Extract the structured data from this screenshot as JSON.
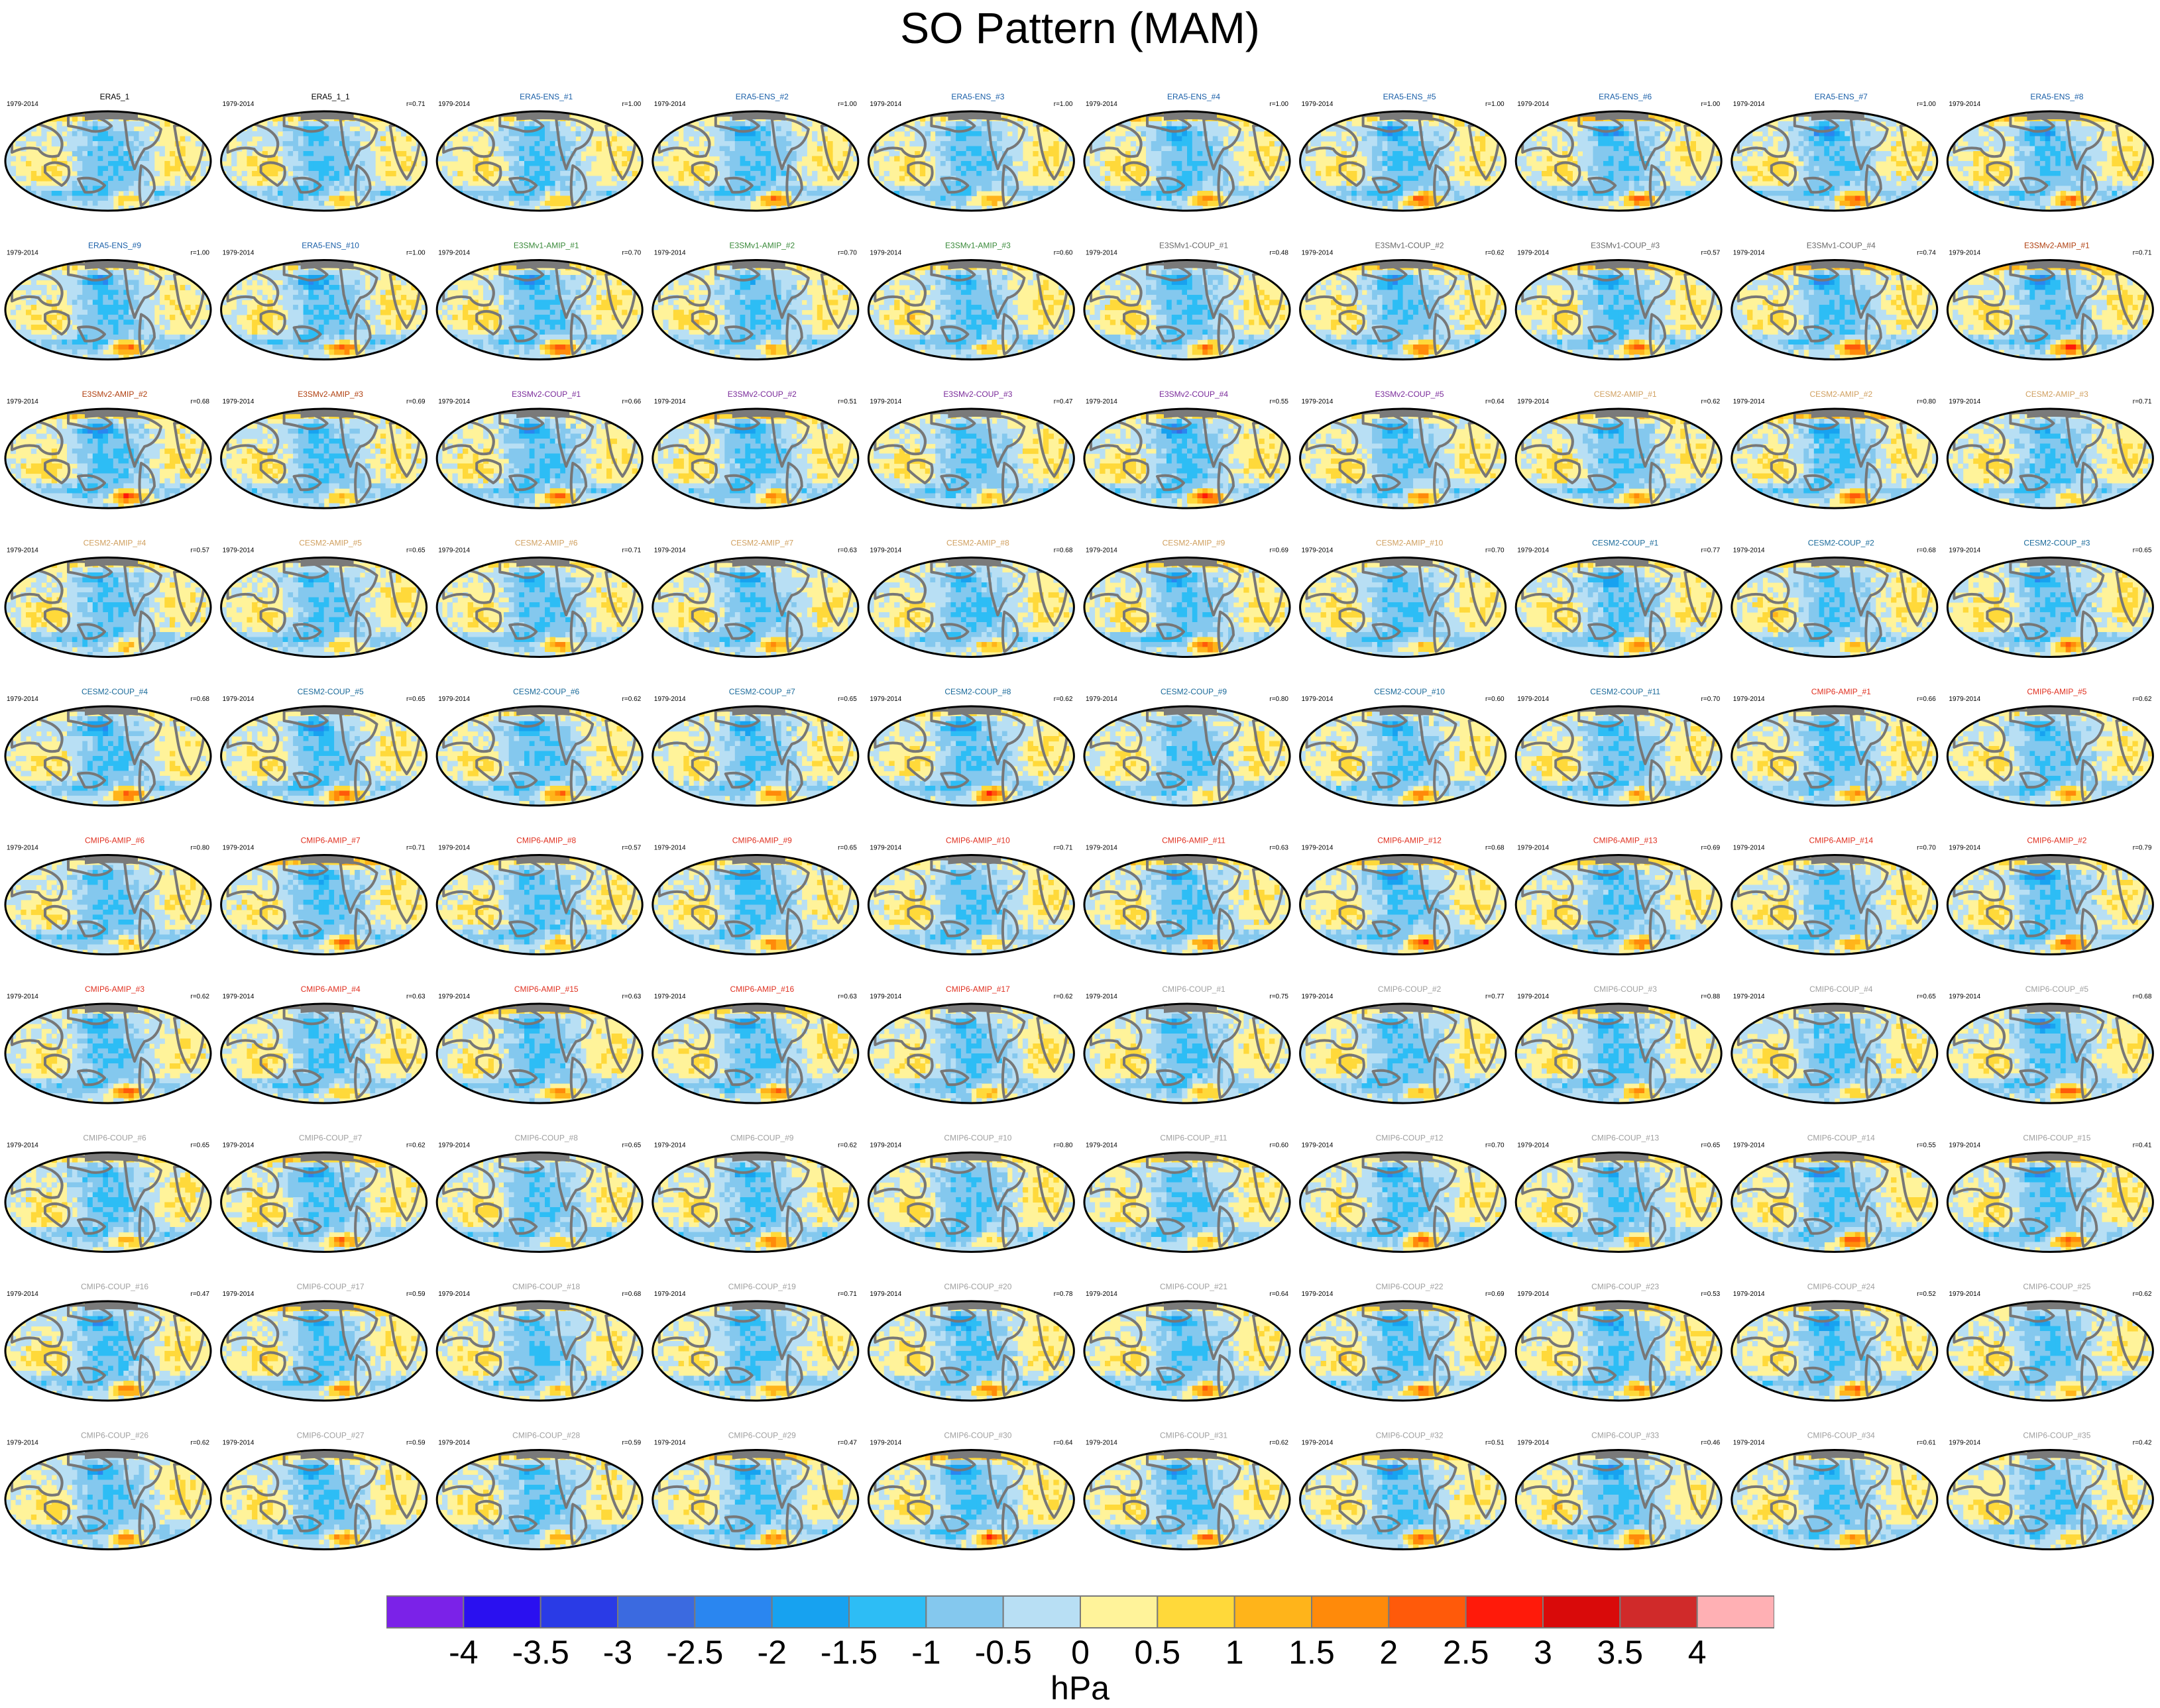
{
  "chart_data": {
    "type": "heatmap",
    "title": "SO Pattern (MAM)",
    "description_type": "grid of global sea-level-pressure regression maps",
    "period": "1979-2014",
    "colorbar": {
      "unit": "hPa",
      "ticks": [
        "-4",
        "-3.5",
        "-3",
        "-2.5",
        "-2",
        "-1.5",
        "-1",
        "-0.5",
        "0",
        "0.5",
        "1",
        "1.5",
        "2",
        "2.5",
        "3",
        "3.5",
        "4"
      ],
      "colors": [
        "#7b22e8",
        "#2a10f0",
        "#2a3be6",
        "#3b6ae0",
        "#2a86f0",
        "#17a2f0",
        "#2dbdf5",
        "#84c8ee",
        "#b8dff4",
        "#fff39a",
        "#ffd93a",
        "#ffb41a",
        "#ff8a0a",
        "#ff5a0a",
        "#ff1a0a",
        "#d90a0a",
        "#d02a2a",
        "#ffb0b4"
      ]
    },
    "panels": [
      {
        "label": "ERA5_1",
        "r": "",
        "group": "ref"
      },
      {
        "label": "ERA5_1_1",
        "r": "r=0.71",
        "group": "ref"
      },
      {
        "label": "ERA5-ENS_#1",
        "r": "r=1.00",
        "group": "era5"
      },
      {
        "label": "ERA5-ENS_#2",
        "r": "r=1.00",
        "group": "era5"
      },
      {
        "label": "ERA5-ENS_#3",
        "r": "r=1.00",
        "group": "era5"
      },
      {
        "label": "ERA5-ENS_#4",
        "r": "r=1.00",
        "group": "era5"
      },
      {
        "label": "ERA5-ENS_#5",
        "r": "r=1.00",
        "group": "era5"
      },
      {
        "label": "ERA5-ENS_#6",
        "r": "r=1.00",
        "group": "era5"
      },
      {
        "label": "ERA5-ENS_#7",
        "r": "r=1.00",
        "group": "era5"
      },
      {
        "label": "ERA5-ENS_#8",
        "r": "",
        "group": "era5"
      },
      {
        "label": "ERA5-ENS_#9",
        "r": "r=1.00",
        "group": "era5"
      },
      {
        "label": "ERA5-ENS_#10",
        "r": "r=1.00",
        "group": "era5"
      },
      {
        "label": "E3SMv1-AMIP_#1",
        "r": "r=0.70",
        "group": "e3sm1amip"
      },
      {
        "label": "E3SMv1-AMIP_#2",
        "r": "r=0.70",
        "group": "e3sm1amip"
      },
      {
        "label": "E3SMv1-AMIP_#3",
        "r": "r=0.60",
        "group": "e3sm1amip"
      },
      {
        "label": "E3SMv1-COUP_#1",
        "r": "r=0.48",
        "group": "e3sm1coup"
      },
      {
        "label": "E3SMv1-COUP_#2",
        "r": "r=0.62",
        "group": "e3sm1coup"
      },
      {
        "label": "E3SMv1-COUP_#3",
        "r": "r=0.57",
        "group": "e3sm1coup"
      },
      {
        "label": "E3SMv1-COUP_#4",
        "r": "r=0.74",
        "group": "e3sm1coup"
      },
      {
        "label": "E3SMv2-AMIP_#1",
        "r": "r=0.71",
        "group": "e3sm2amip"
      },
      {
        "label": "E3SMv2-AMIP_#2",
        "r": "r=0.68",
        "group": "e3sm2amip"
      },
      {
        "label": "E3SMv2-AMIP_#3",
        "r": "r=0.69",
        "group": "e3sm2amip"
      },
      {
        "label": "E3SMv2-COUP_#1",
        "r": "r=0.66",
        "group": "e3sm2coup"
      },
      {
        "label": "E3SMv2-COUP_#2",
        "r": "r=0.51",
        "group": "e3sm2coup"
      },
      {
        "label": "E3SMv2-COUP_#3",
        "r": "r=0.47",
        "group": "e3sm2coup"
      },
      {
        "label": "E3SMv2-COUP_#4",
        "r": "r=0.55",
        "group": "e3sm2coup"
      },
      {
        "label": "E3SMv2-COUP_#5",
        "r": "r=0.64",
        "group": "e3sm2coup"
      },
      {
        "label": "CESM2-AMIP_#1",
        "r": "r=0.62",
        "group": "cesmamip"
      },
      {
        "label": "CESM2-AMIP_#2",
        "r": "r=0.80",
        "group": "cesmamip"
      },
      {
        "label": "CESM2-AMIP_#3",
        "r": "r=0.71",
        "group": "cesmamip"
      },
      {
        "label": "CESM2-AMIP_#4",
        "r": "r=0.57",
        "group": "cesmamip"
      },
      {
        "label": "CESM2-AMIP_#5",
        "r": "r=0.65",
        "group": "cesmamip"
      },
      {
        "label": "CESM2-AMIP_#6",
        "r": "r=0.71",
        "group": "cesmamip"
      },
      {
        "label": "CESM2-AMIP_#7",
        "r": "r=0.63",
        "group": "cesmamip"
      },
      {
        "label": "CESM2-AMIP_#8",
        "r": "r=0.68",
        "group": "cesmamip"
      },
      {
        "label": "CESM2-AMIP_#9",
        "r": "r=0.69",
        "group": "cesmamip"
      },
      {
        "label": "CESM2-AMIP_#10",
        "r": "r=0.70",
        "group": "cesmamip"
      },
      {
        "label": "CESM2-COUP_#1",
        "r": "r=0.77",
        "group": "cesmcoup"
      },
      {
        "label": "CESM2-COUP_#2",
        "r": "r=0.68",
        "group": "cesmcoup"
      },
      {
        "label": "CESM2-COUP_#3",
        "r": "r=0.65",
        "group": "cesmcoup"
      },
      {
        "label": "CESM2-COUP_#4",
        "r": "r=0.68",
        "group": "cesmcoup"
      },
      {
        "label": "CESM2-COUP_#5",
        "r": "r=0.65",
        "group": "cesmcoup"
      },
      {
        "label": "CESM2-COUP_#6",
        "r": "r=0.62",
        "group": "cesmcoup"
      },
      {
        "label": "CESM2-COUP_#7",
        "r": "r=0.65",
        "group": "cesmcoup"
      },
      {
        "label": "CESM2-COUP_#8",
        "r": "r=0.62",
        "group": "cesmcoup"
      },
      {
        "label": "CESM2-COUP_#9",
        "r": "r=0.80",
        "group": "cesmcoup"
      },
      {
        "label": "CESM2-COUP_#10",
        "r": "r=0.60",
        "group": "cesmcoup"
      },
      {
        "label": "CESM2-COUP_#11",
        "r": "r=0.70",
        "group": "cesmcoup"
      },
      {
        "label": "CMIP6-AMIP_#1",
        "r": "r=0.66",
        "group": "cmipamip"
      },
      {
        "label": "CMIP6-AMIP_#5",
        "r": "r=0.62",
        "group": "cmipamip"
      },
      {
        "label": "CMIP6-AMIP_#6",
        "r": "r=0.80",
        "group": "cmipamip"
      },
      {
        "label": "CMIP6-AMIP_#7",
        "r": "r=0.71",
        "group": "cmipamip"
      },
      {
        "label": "CMIP6-AMIP_#8",
        "r": "r=0.57",
        "group": "cmipamip"
      },
      {
        "label": "CMIP6-AMIP_#9",
        "r": "r=0.65",
        "group": "cmipamip"
      },
      {
        "label": "CMIP6-AMIP_#10",
        "r": "r=0.71",
        "group": "cmipamip"
      },
      {
        "label": "CMIP6-AMIP_#11",
        "r": "r=0.63",
        "group": "cmipamip"
      },
      {
        "label": "CMIP6-AMIP_#12",
        "r": "r=0.68",
        "group": "cmipamip"
      },
      {
        "label": "CMIP6-AMIP_#13",
        "r": "r=0.69",
        "group": "cmipamip"
      },
      {
        "label": "CMIP6-AMIP_#14",
        "r": "r=0.70",
        "group": "cmipamip"
      },
      {
        "label": "CMIP6-AMIP_#2",
        "r": "r=0.79",
        "group": "cmipamip"
      },
      {
        "label": "CMIP6-AMIP_#3",
        "r": "r=0.62",
        "group": "cmipamip"
      },
      {
        "label": "CMIP6-AMIP_#4",
        "r": "r=0.63",
        "group": "cmipamip"
      },
      {
        "label": "CMIP6-AMIP_#15",
        "r": "r=0.63",
        "group": "cmipamip"
      },
      {
        "label": "CMIP6-AMIP_#16",
        "r": "r=0.63",
        "group": "cmipamip"
      },
      {
        "label": "CMIP6-AMIP_#17",
        "r": "r=0.62",
        "group": "cmipamip"
      },
      {
        "label": "CMIP6-COUP_#1",
        "r": "r=0.75",
        "group": "cmipcoup"
      },
      {
        "label": "CMIP6-COUP_#2",
        "r": "r=0.77",
        "group": "cmipcoup"
      },
      {
        "label": "CMIP6-COUP_#3",
        "r": "r=0.88",
        "group": "cmipcoup"
      },
      {
        "label": "CMIP6-COUP_#4",
        "r": "r=0.65",
        "group": "cmipcoup"
      },
      {
        "label": "CMIP6-COUP_#5",
        "r": "r=0.68",
        "group": "cmipcoup"
      },
      {
        "label": "CMIP6-COUP_#6",
        "r": "r=0.65",
        "group": "cmipcoup"
      },
      {
        "label": "CMIP6-COUP_#7",
        "r": "r=0.62",
        "group": "cmipcoup"
      },
      {
        "label": "CMIP6-COUP_#8",
        "r": "r=0.65",
        "group": "cmipcoup"
      },
      {
        "label": "CMIP6-COUP_#9",
        "r": "r=0.62",
        "group": "cmipcoup"
      },
      {
        "label": "CMIP6-COUP_#10",
        "r": "r=0.80",
        "group": "cmipcoup"
      },
      {
        "label": "CMIP6-COUP_#11",
        "r": "r=0.60",
        "group": "cmipcoup"
      },
      {
        "label": "CMIP6-COUP_#12",
        "r": "r=0.70",
        "group": "cmipcoup"
      },
      {
        "label": "CMIP6-COUP_#13",
        "r": "r=0.65",
        "group": "cmipcoup"
      },
      {
        "label": "CMIP6-COUP_#14",
        "r": "r=0.55",
        "group": "cmipcoup"
      },
      {
        "label": "CMIP6-COUP_#15",
        "r": "r=0.41",
        "group": "cmipcoup"
      },
      {
        "label": "CMIP6-COUP_#16",
        "r": "r=0.47",
        "group": "cmipcoup"
      },
      {
        "label": "CMIP6-COUP_#17",
        "r": "r=0.59",
        "group": "cmipcoup"
      },
      {
        "label": "CMIP6-COUP_#18",
        "r": "r=0.68",
        "group": "cmipcoup"
      },
      {
        "label": "CMIP6-COUP_#19",
        "r": "r=0.71",
        "group": "cmipcoup"
      },
      {
        "label": "CMIP6-COUP_#20",
        "r": "r=0.78",
        "group": "cmipcoup"
      },
      {
        "label": "CMIP6-COUP_#21",
        "r": "r=0.64",
        "group": "cmipcoup"
      },
      {
        "label": "CMIP6-COUP_#22",
        "r": "r=0.69",
        "group": "cmipcoup"
      },
      {
        "label": "CMIP6-COUP_#23",
        "r": "r=0.53",
        "group": "cmipcoup"
      },
      {
        "label": "CMIP6-COUP_#24",
        "r": "r=0.52",
        "group": "cmipcoup"
      },
      {
        "label": "CMIP6-COUP_#25",
        "r": "r=0.62",
        "group": "cmipcoup"
      },
      {
        "label": "CMIP6-COUP_#26",
        "r": "r=0.62",
        "group": "cmipcoup"
      },
      {
        "label": "CMIP6-COUP_#27",
        "r": "r=0.59",
        "group": "cmipcoup"
      },
      {
        "label": "CMIP6-COUP_#28",
        "r": "r=0.59",
        "group": "cmipcoup"
      },
      {
        "label": "CMIP6-COUP_#29",
        "r": "r=0.47",
        "group": "cmipcoup"
      },
      {
        "label": "CMIP6-COUP_#30",
        "r": "r=0.64",
        "group": "cmipcoup"
      },
      {
        "label": "CMIP6-COUP_#31",
        "r": "r=0.62",
        "group": "cmipcoup"
      },
      {
        "label": "CMIP6-COUP_#32",
        "r": "r=0.51",
        "group": "cmipcoup"
      },
      {
        "label": "CMIP6-COUP_#33",
        "r": "r=0.46",
        "group": "cmipcoup"
      },
      {
        "label": "CMIP6-COUP_#34",
        "r": "r=0.61",
        "group": "cmipcoup"
      },
      {
        "label": "CMIP6-COUP_#35",
        "r": "r=0.42",
        "group": "cmipcoup"
      }
    ],
    "group_colors": {
      "ref": "#000000",
      "era5": "#1a5fa8",
      "e3sm1amip": "#3a8a3a",
      "e3sm1coup": "#6a6a6a",
      "e3sm2amip": "#b04010",
      "e3sm2coup": "#7a2a9a",
      "cesmamip": "#d0a060",
      "cesmcoup": "#1a6a9a",
      "cmipamip": "#e03020",
      "cmipcoup": "#a0a0a0"
    }
  }
}
